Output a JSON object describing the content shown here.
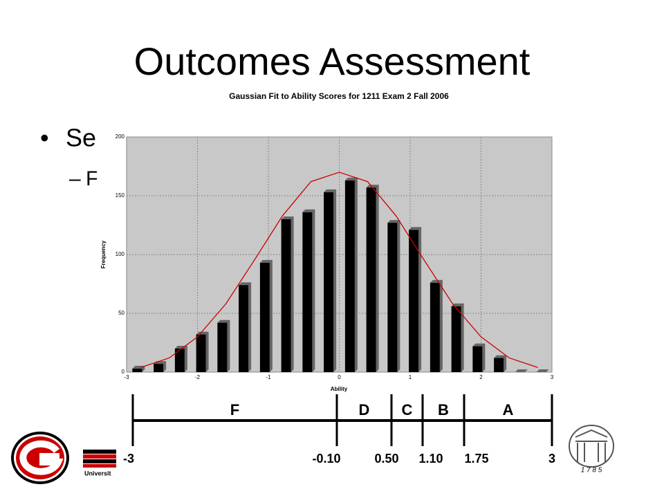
{
  "slide_title": "Outcomes Assessment",
  "bullets": [
    "Se",
    "F"
  ],
  "chart_data": {
    "type": "bar",
    "title": "Gaussian Fit to Ability Scores for 1211 Exam 2  Fall 2006",
    "x_label": "Ability",
    "y_label": "Frequency",
    "x": [
      -2.85,
      -2.55,
      -2.25,
      -1.95,
      -1.65,
      -1.35,
      -1.05,
      -0.75,
      -0.45,
      -0.15,
      0.15,
      0.45,
      0.75,
      1.05,
      1.35,
      1.65,
      1.95,
      2.25,
      2.55,
      2.85
    ],
    "values": [
      3,
      7,
      20,
      32,
      42,
      74,
      93,
      130,
      136,
      153,
      163,
      157,
      127,
      121,
      76,
      56,
      22,
      12,
      0,
      0
    ],
    "color": "#000000",
    "curve": {
      "x": [
        -2.8,
        -2.4,
        -2.0,
        -1.6,
        -1.2,
        -0.8,
        -0.4,
        0,
        0.4,
        0.8,
        1.2,
        1.6,
        2.0,
        2.4,
        2.8
      ],
      "values": [
        4,
        12,
        30,
        58,
        95,
        133,
        162,
        170,
        162,
        133,
        95,
        58,
        30,
        12,
        4
      ],
      "color": "#cc0000"
    },
    "xlim": [
      -3,
      3
    ],
    "xticks": [
      -3,
      -2,
      -1,
      0,
      1,
      2,
      3
    ],
    "ylim": [
      0,
      200
    ],
    "yticks": [
      0,
      50,
      100,
      150,
      200
    ],
    "grid": true
  },
  "grade_scale": {
    "grades": [
      "F",
      "D",
      "C",
      "B",
      "A"
    ],
    "cutoffs": [
      {
        "value": -3,
        "label": "-3"
      },
      {
        "value": -0.1,
        "label": "-0.10"
      },
      {
        "value": 0.5,
        "label": "0.50"
      },
      {
        "value": 1.1,
        "label": "1.10"
      },
      {
        "value": 1.75,
        "label": "1.75"
      },
      {
        "value": 3,
        "label": "3"
      }
    ]
  },
  "footer": {
    "university": "Universit",
    "year": "1 7 8 5"
  }
}
